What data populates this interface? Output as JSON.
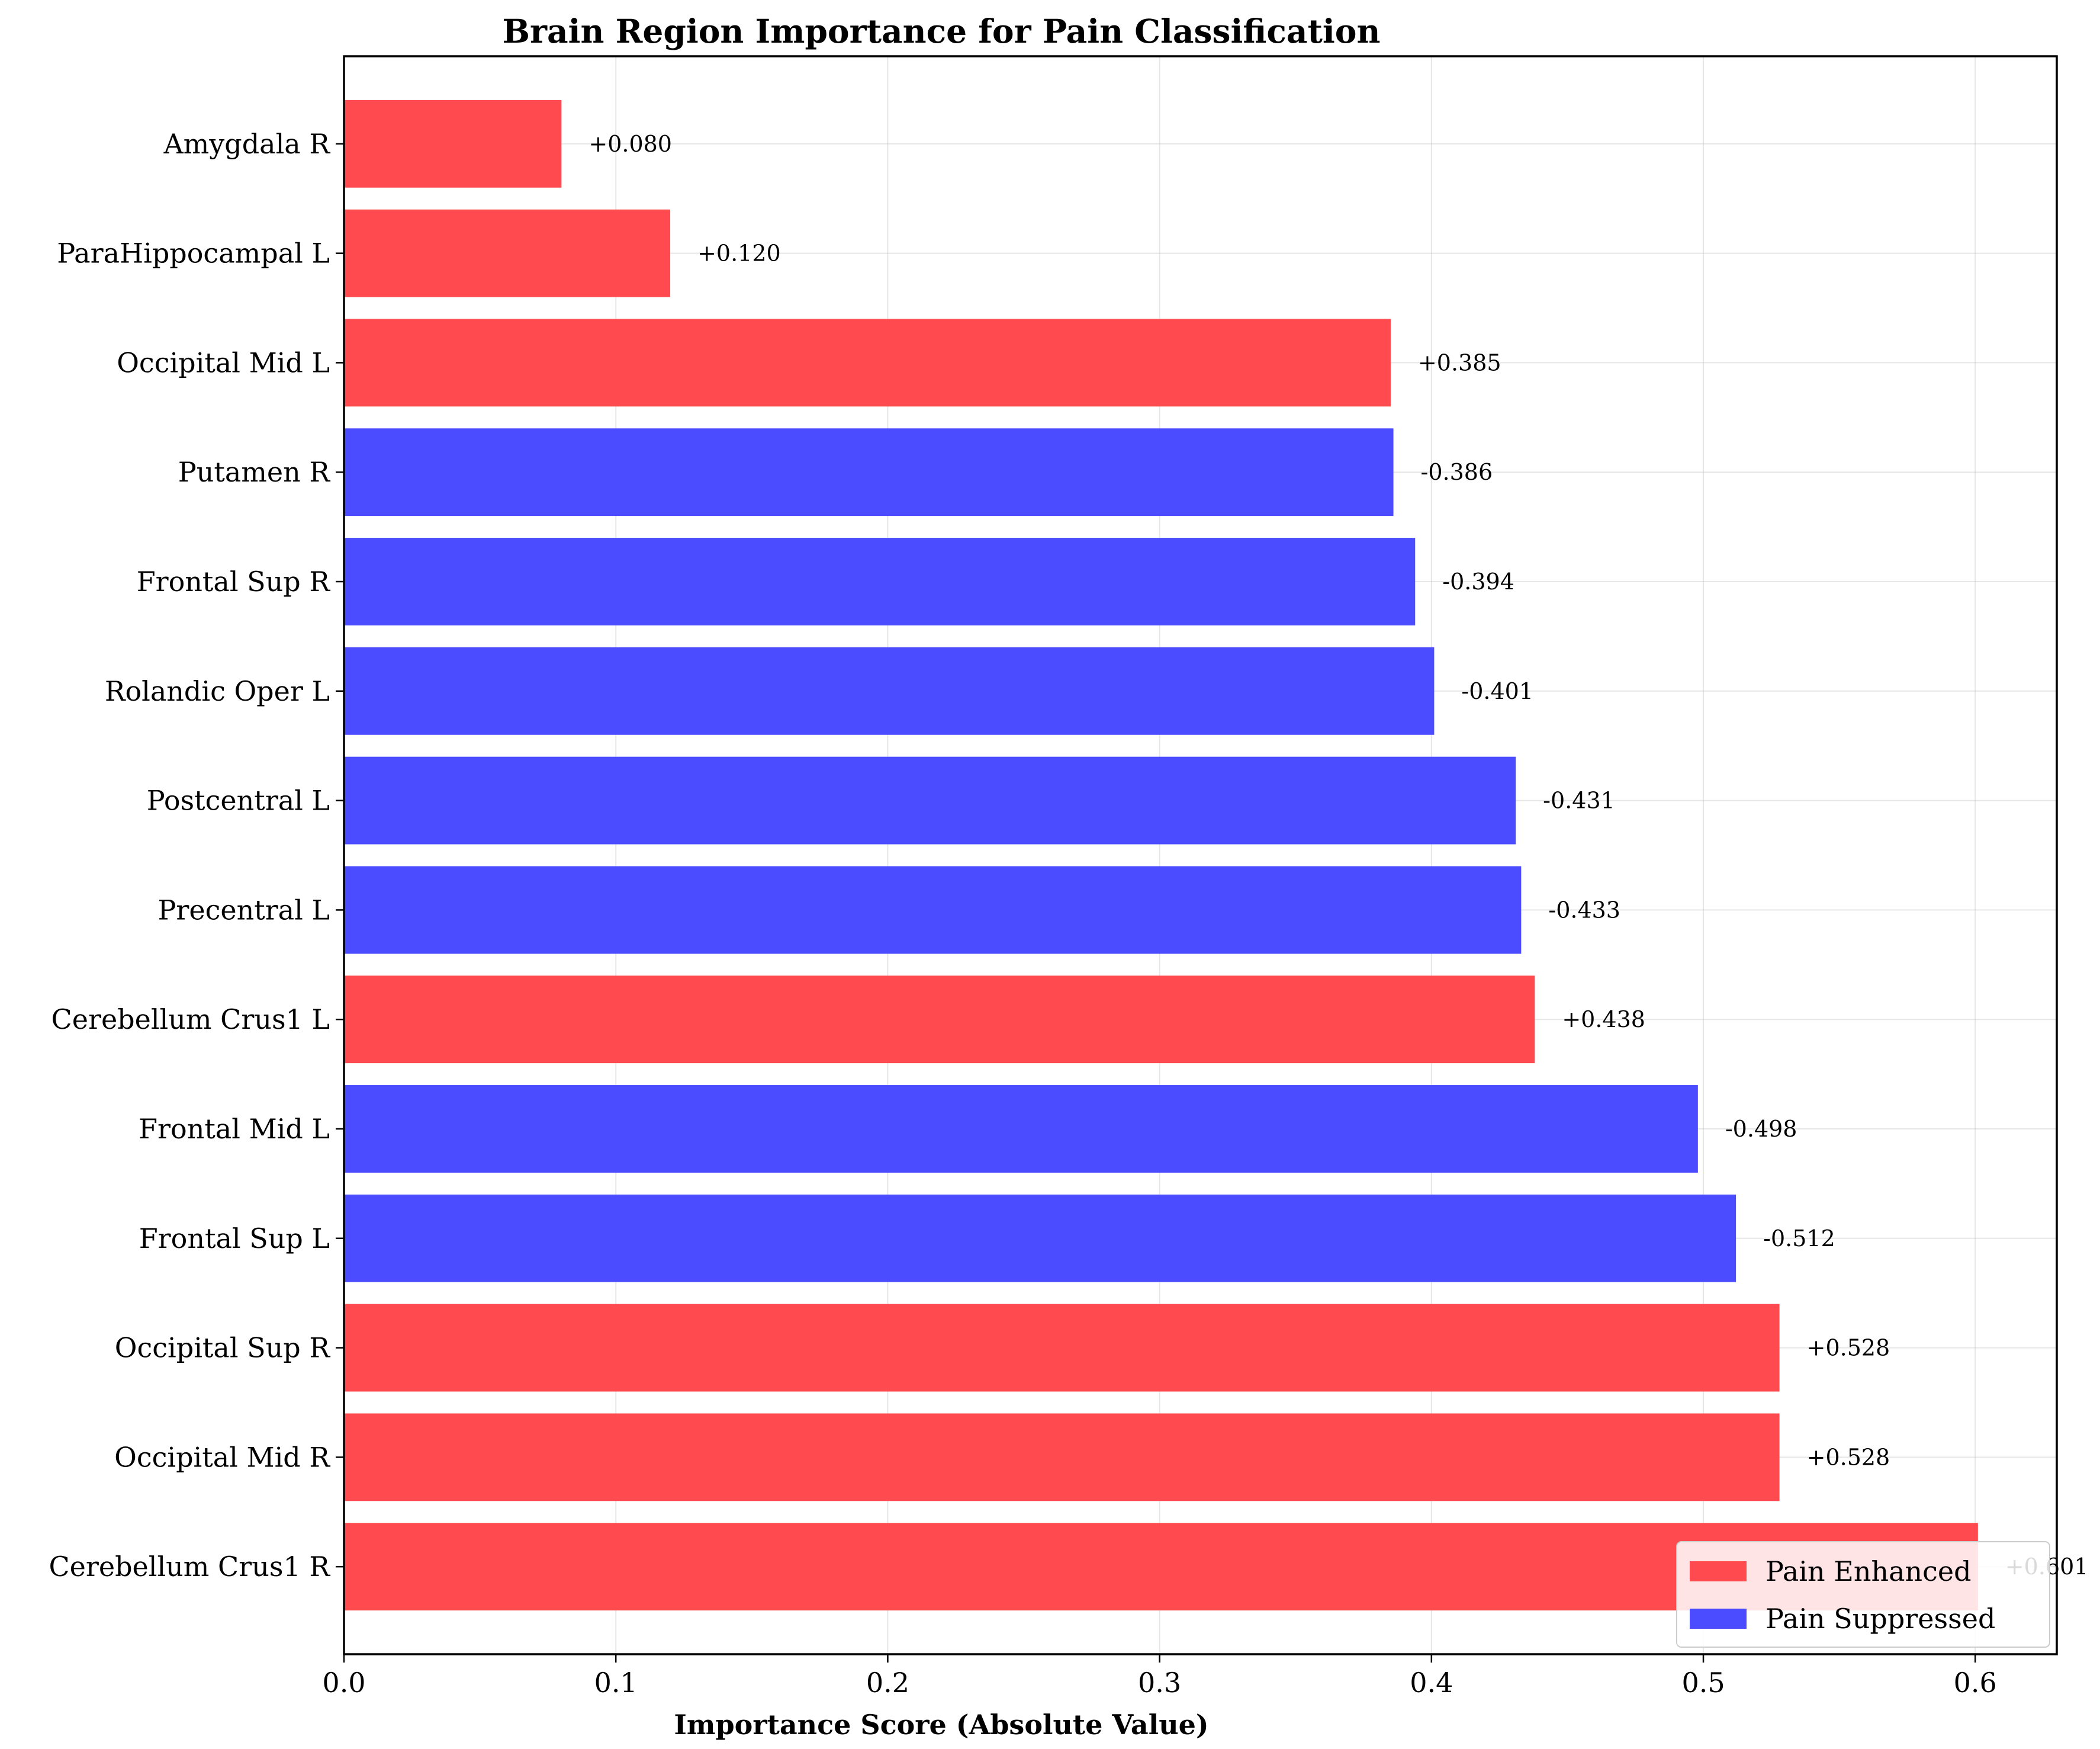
{
  "chart_data": {
    "type": "bar",
    "orientation": "horizontal",
    "title": "Brain Region Importance for Pain Classification",
    "xlabel": "Importance Score (Absolute Value)",
    "ylabel": "",
    "xlim": [
      0,
      0.63
    ],
    "xticks": [
      0.0,
      0.1,
      0.2,
      0.3,
      0.4,
      0.5,
      0.6
    ],
    "xtick_labels": [
      "0.0",
      "0.1",
      "0.2",
      "0.3",
      "0.4",
      "0.5",
      "0.6"
    ],
    "grid": true,
    "legend_position": "bottom-right",
    "colors": {
      "enhanced": "#ff4b4f",
      "suppressed": "#4b4bff"
    },
    "legend": [
      {
        "label": "Pain Enhanced",
        "group": "enhanced"
      },
      {
        "label": "Pain Suppressed",
        "group": "suppressed"
      }
    ],
    "bars": [
      {
        "region": "Amygdala R",
        "value": 0.08,
        "label": "+0.080",
        "group": "enhanced"
      },
      {
        "region": "ParaHippocampal L",
        "value": 0.12,
        "label": "+0.120",
        "group": "enhanced"
      },
      {
        "region": "Occipital Mid L",
        "value": 0.385,
        "label": "+0.385",
        "group": "enhanced"
      },
      {
        "region": "Putamen R",
        "value": 0.386,
        "label": "-0.386",
        "group": "suppressed"
      },
      {
        "region": "Frontal Sup R",
        "value": 0.394,
        "label": "-0.394",
        "group": "suppressed"
      },
      {
        "region": "Rolandic Oper L",
        "value": 0.401,
        "label": "-0.401",
        "group": "suppressed"
      },
      {
        "region": "Postcentral L",
        "value": 0.431,
        "label": "-0.431",
        "group": "suppressed"
      },
      {
        "region": "Precentral L",
        "value": 0.433,
        "label": "-0.433",
        "group": "suppressed"
      },
      {
        "region": "Cerebellum Crus1 L",
        "value": 0.438,
        "label": "+0.438",
        "group": "enhanced"
      },
      {
        "region": "Frontal Mid L",
        "value": 0.498,
        "label": "-0.498",
        "group": "suppressed"
      },
      {
        "region": "Frontal Sup L",
        "value": 0.512,
        "label": "-0.512",
        "group": "suppressed"
      },
      {
        "region": "Occipital Sup R",
        "value": 0.528,
        "label": "+0.528",
        "group": "enhanced"
      },
      {
        "region": "Occipital Mid R",
        "value": 0.528,
        "label": "+0.528",
        "group": "enhanced"
      },
      {
        "region": "Cerebellum Crus1 R",
        "value": 0.601,
        "label": "+0.601",
        "group": "enhanced"
      }
    ]
  }
}
